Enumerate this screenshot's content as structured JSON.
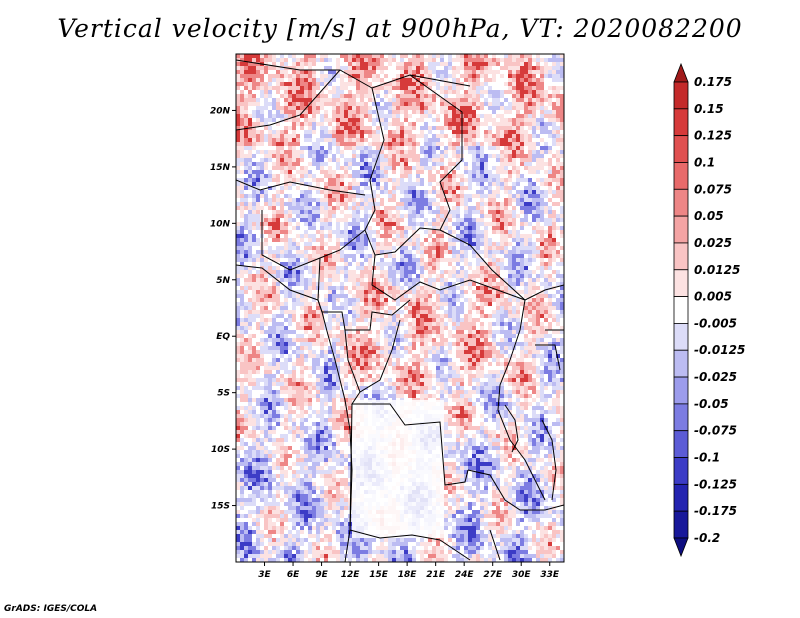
{
  "title": "Vertical velocity [m/s] at 900hPa, VT: 2020082200",
  "credit": "GrADS: IGES/COLA",
  "lat_labels": [
    "20N",
    "15N",
    "10N",
    "5N",
    "EQ",
    "5S",
    "10S",
    "15S"
  ],
  "lat_values": [
    20,
    15,
    10,
    5,
    0,
    -5,
    -10,
    -15
  ],
  "lon_labels": [
    "3E",
    "6E",
    "9E",
    "12E",
    "15E",
    "18E",
    "21E",
    "24E",
    "27E",
    "30E",
    "33E"
  ],
  "lon_values": [
    3,
    6,
    9,
    12,
    15,
    18,
    21,
    24,
    27,
    30,
    33
  ],
  "lon_range": [
    0,
    34.5
  ],
  "lat_range": [
    -20,
    25
  ],
  "colorbar": {
    "levels": [
      "0.175",
      "0.15",
      "0.125",
      "0.1",
      "0.075",
      "0.05",
      "0.025",
      "0.0125",
      "0.005",
      "-0.005",
      "-0.0125",
      "-0.025",
      "-0.05",
      "-0.075",
      "-0.1",
      "-0.125",
      "-0.175",
      "-0.2"
    ],
    "colors": [
      "#a01a1a",
      "#c42a2a",
      "#d63a3a",
      "#e05050",
      "#e86a6a",
      "#ee8686",
      "#f4a4a4",
      "#f9c4c4",
      "#fce2e2",
      "#ffffff",
      "#dcdcf8",
      "#bcbcf2",
      "#9c9cec",
      "#7c7ce2",
      "#5c5cd6",
      "#3c3cc6",
      "#2424b0",
      "#18189a",
      "#0e0e80"
    ]
  },
  "colors": {
    "positive": "#e03030",
    "negative": "#4040d0",
    "border": "#000000"
  }
}
